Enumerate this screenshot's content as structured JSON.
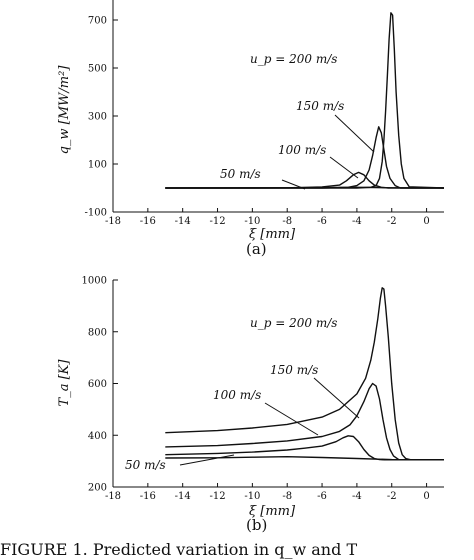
{
  "chart_data": [
    {
      "type": "line",
      "panel_label": "(a)",
      "xlabel": "ξ [mm]",
      "ylabel": "q_w [MW/m²]",
      "xlim": [
        -18,
        1
      ],
      "ylim": [
        -100,
        800
      ],
      "x_ticks": [
        "-18",
        "-16",
        "-14",
        "-12",
        "-10",
        "-8",
        "-6",
        "-4",
        "-2",
        "0"
      ],
      "y_ticks": [
        "-100",
        "100",
        "300",
        "500",
        "700"
      ],
      "annotations": [
        "u_p = 200 m/s",
        "150 m/s",
        "100 m/s",
        "50 m/s"
      ],
      "series": [
        {
          "name": "50 m/s",
          "x": [
            -15,
            -10,
            -7,
            -5,
            -4,
            -3,
            -2,
            1
          ],
          "y": [
            0,
            0,
            1,
            2,
            3,
            2,
            1,
            0
          ]
        },
        {
          "name": "100 m/s",
          "x": [
            -15,
            -8,
            -6,
            -5,
            -4.6,
            -4.2,
            -3.9,
            -3.6,
            -3.3,
            -3.0,
            -2.6,
            -2.2,
            1
          ],
          "y": [
            0,
            1,
            4,
            12,
            30,
            55,
            65,
            55,
            30,
            12,
            3,
            0,
            0
          ]
        },
        {
          "name": "150 m/s",
          "x": [
            -15,
            -6,
            -4.5,
            -4.0,
            -3.6,
            -3.3,
            -3.1,
            -2.9,
            -2.75,
            -2.6,
            -2.45,
            -2.3,
            -2.1,
            -1.8,
            -1.5,
            1
          ],
          "y": [
            0,
            0,
            3,
            10,
            30,
            75,
            135,
            210,
            255,
            230,
            160,
            90,
            40,
            10,
            0,
            0
          ]
        },
        {
          "name": "200 m/s",
          "x": [
            -15,
            -4,
            -3.2,
            -2.9,
            -2.7,
            -2.55,
            -2.45,
            -2.35,
            -2.25,
            -2.15,
            -2.05,
            -1.95,
            -1.85,
            -1.75,
            -1.6,
            -1.45,
            -1.3,
            -1.0,
            1
          ],
          "y": [
            0,
            0,
            3,
            10,
            40,
            110,
            200,
            320,
            470,
            620,
            730,
            720,
            580,
            400,
            220,
            100,
            40,
            5,
            0
          ]
        }
      ]
    },
    {
      "type": "line",
      "panel_label": "(b)",
      "xlabel": "ξ [mm]",
      "ylabel": "T_a [K]",
      "xlim": [
        -18,
        1
      ],
      "ylim": [
        200,
        1000
      ],
      "x_ticks": [
        "-18",
        "-16",
        "-14",
        "-12",
        "-10",
        "-8",
        "-6",
        "-4",
        "-2",
        "0"
      ],
      "y_ticks": [
        "200",
        "400",
        "600",
        "800",
        "1000"
      ],
      "annotations": [
        "u_p = 200 m/s",
        "150 m/s",
        "100 m/s",
        "50 m/s"
      ],
      "series": [
        {
          "name": "50 m/s",
          "x": [
            -15,
            -12,
            -10,
            -8,
            -6,
            -4,
            -2,
            1
          ],
          "y": [
            312,
            313,
            315,
            317,
            314,
            310,
            306,
            305
          ]
        },
        {
          "name": "100 m/s",
          "x": [
            -15,
            -12,
            -10,
            -8,
            -7,
            -6,
            -5.2,
            -4.8,
            -4.5,
            -4.2,
            -3.9,
            -3.6,
            -3.3,
            -3.0,
            -2.7,
            -2.4,
            -2.0,
            1
          ],
          "y": [
            325,
            330,
            335,
            343,
            350,
            358,
            375,
            390,
            398,
            395,
            375,
            345,
            322,
            310,
            306,
            305,
            305,
            305
          ]
        },
        {
          "name": "150 m/s",
          "x": [
            -15,
            -12,
            -10,
            -8,
            -6,
            -5,
            -4.4,
            -4.0,
            -3.6,
            -3.3,
            -3.1,
            -2.9,
            -2.7,
            -2.5,
            -2.3,
            -2.1,
            -1.9,
            -1.6,
            1
          ],
          "y": [
            355,
            360,
            368,
            378,
            395,
            415,
            440,
            475,
            530,
            580,
            600,
            590,
            540,
            460,
            390,
            345,
            320,
            306,
            305
          ]
        },
        {
          "name": "200 m/s",
          "x": [
            -15,
            -12,
            -10,
            -8,
            -6,
            -5,
            -4,
            -3.5,
            -3.2,
            -3.0,
            -2.8,
            -2.65,
            -2.55,
            -2.45,
            -2.35,
            -2.2,
            -2.0,
            -1.8,
            -1.6,
            -1.4,
            -1.2,
            -0.9,
            1
          ],
          "y": [
            410,
            418,
            428,
            442,
            470,
            500,
            560,
            620,
            690,
            760,
            850,
            930,
            970,
            965,
            900,
            780,
            600,
            460,
            370,
            325,
            310,
            305,
            305
          ]
        }
      ]
    }
  ],
  "caption_text": "FIGURE 1.   Predicted variation in q_w and T"
}
